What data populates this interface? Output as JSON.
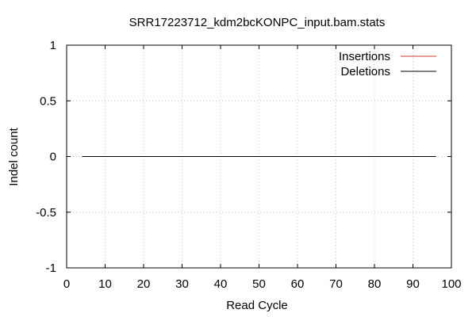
{
  "chart_data": {
    "type": "line",
    "title": "SRR17223712_kdm2bcKONPC_input.bam.stats",
    "xlabel": "Read Cycle",
    "ylabel": "Indel count",
    "xlim": [
      0,
      100
    ],
    "ylim": [
      -1,
      1
    ],
    "xticks": [
      0,
      10,
      20,
      30,
      40,
      50,
      60,
      70,
      80,
      90,
      100
    ],
    "xtick_labels": [
      "0",
      "10",
      "20",
      "30",
      "40",
      "50",
      "60",
      "70",
      "80",
      "90",
      "100"
    ],
    "yticks": [
      1,
      0.5,
      0,
      -0.5,
      -1
    ],
    "ytick_labels": [
      "1",
      "0.5",
      "0",
      "-0.5",
      "-1"
    ],
    "grid": true,
    "legend_position": "top-right",
    "series": [
      {
        "name": "Insertions",
        "color": "#cc3333",
        "x": [
          4,
          96
        ],
        "y": [
          0,
          0
        ]
      },
      {
        "name": "Deletions",
        "color": "#000000",
        "x": [
          4,
          96
        ],
        "y": [
          0,
          0
        ]
      }
    ]
  }
}
